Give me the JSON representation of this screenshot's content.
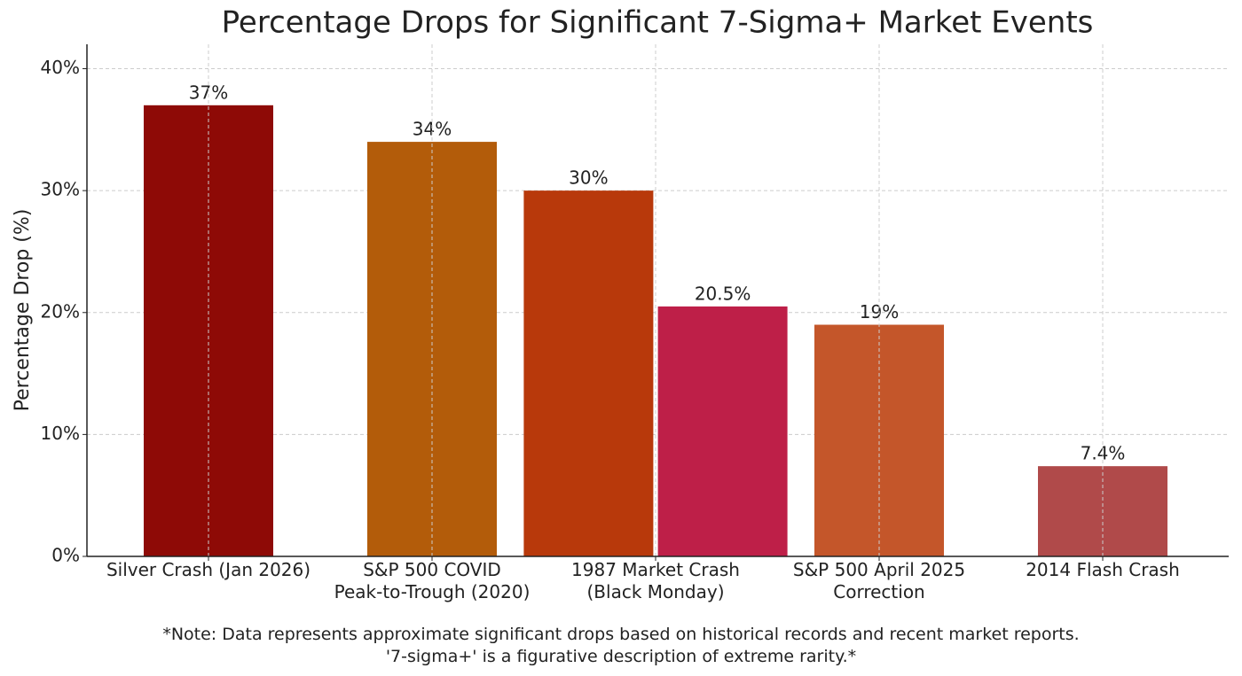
{
  "chart_data": {
    "type": "bar",
    "title": "Percentage Drops for Significant 7-Sigma+ Market Events",
    "ylabel": "Percentage Drop (%)",
    "categories": [
      "Silver Crash (Jan 2026)",
      "S&P 500 COVID\nPeak-to-Trough (2020)",
      "1987 Market Crash\n(Black Monday)",
      null,
      "S&P 500 April 2025\nCorrection",
      "2014 Flash Crash"
    ],
    "values": [
      37,
      34,
      30,
      20.5,
      19,
      7.4
    ],
    "value_labels": [
      "37%",
      "34%",
      "30%",
      "20.5%",
      "19%",
      "7.4%"
    ],
    "colors": [
      "#8e0a06",
      "#b35c0a",
      "#b8390b",
      "#be1f48",
      "#c4562a",
      "#b04a4a"
    ],
    "ylim": [
      0,
      42
    ],
    "yticks": [
      {
        "value": 0,
        "label": "0%"
      },
      {
        "value": 10,
        "label": "10%"
      },
      {
        "value": 20,
        "label": "20%"
      },
      {
        "value": 30,
        "label": "30%"
      },
      {
        "value": 40,
        "label": "40%"
      }
    ],
    "grid": true,
    "note": "*Note: Data represents approximate significant drops based on historical records and recent market reports.\n'7-sigma+' is a figurative description of extreme rarity.*"
  }
}
